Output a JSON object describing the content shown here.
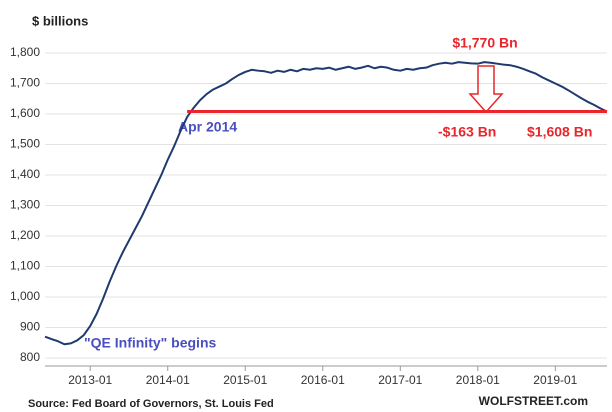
{
  "chart_data": {
    "type": "line",
    "title": "$ billions",
    "source": "Source: Fed Board of Governors, St. Louis Fed",
    "brand": "WOLFSTREET.com",
    "annotations": {
      "peak": "$1,770 Bn",
      "start": "Apr 2014",
      "drop": "-$163 Bn",
      "current": "$1,608 Bn",
      "qe": "\"QE Infinity\" begins"
    },
    "reference_line": {
      "value": 1608,
      "from": "2014-04",
      "color": "#e8262b"
    },
    "x": [
      "2012-06",
      "2012-07",
      "2012-08",
      "2012-09",
      "2012-10",
      "2012-11",
      "2012-12",
      "2013-01",
      "2013-02",
      "2013-03",
      "2013-04",
      "2013-05",
      "2013-06",
      "2013-07",
      "2013-08",
      "2013-09",
      "2013-10",
      "2013-11",
      "2013-12",
      "2014-01",
      "2014-02",
      "2014-03",
      "2014-04",
      "2014-05",
      "2014-06",
      "2014-07",
      "2014-08",
      "2014-09",
      "2014-10",
      "2014-11",
      "2014-12",
      "2015-01",
      "2015-02",
      "2015-03",
      "2015-04",
      "2015-05",
      "2015-06",
      "2015-07",
      "2015-08",
      "2015-09",
      "2015-10",
      "2015-11",
      "2015-12",
      "2016-01",
      "2016-02",
      "2016-03",
      "2016-04",
      "2016-05",
      "2016-06",
      "2016-07",
      "2016-08",
      "2016-09",
      "2016-10",
      "2016-11",
      "2016-12",
      "2017-01",
      "2017-02",
      "2017-03",
      "2017-04",
      "2017-05",
      "2017-06",
      "2017-07",
      "2017-08",
      "2017-09",
      "2017-10",
      "2017-11",
      "2017-12",
      "2018-01",
      "2018-02",
      "2018-03",
      "2018-04",
      "2018-05",
      "2018-06",
      "2018-07",
      "2018-08",
      "2018-09",
      "2018-10",
      "2018-11",
      "2018-12",
      "2019-01",
      "2019-02",
      "2019-03",
      "2019-04",
      "2019-05",
      "2019-06",
      "2019-07",
      "2019-08",
      "2019-09"
    ],
    "series": [
      {
        "color": "#1f3a6e",
        "values": [
          870,
          862,
          855,
          845,
          848,
          858,
          875,
          905,
          945,
          995,
          1050,
          1100,
          1145,
          1185,
          1225,
          1265,
          1310,
          1355,
          1400,
          1450,
          1495,
          1545,
          1590,
          1620,
          1645,
          1665,
          1680,
          1690,
          1700,
          1715,
          1728,
          1738,
          1745,
          1742,
          1740,
          1735,
          1742,
          1738,
          1745,
          1740,
          1748,
          1745,
          1750,
          1748,
          1752,
          1745,
          1750,
          1755,
          1748,
          1752,
          1758,
          1750,
          1755,
          1752,
          1745,
          1742,
          1748,
          1745,
          1750,
          1752,
          1760,
          1765,
          1768,
          1765,
          1770,
          1768,
          1766,
          1765,
          1770,
          1768,
          1765,
          1762,
          1760,
          1755,
          1748,
          1740,
          1732,
          1720,
          1710,
          1700,
          1690,
          1678,
          1665,
          1652,
          1640,
          1630,
          1618,
          1608
        ]
      }
    ],
    "xlim": [
      "2012-06",
      "2019-09"
    ],
    "xticks": [
      "2013-01",
      "2014-01",
      "2015-01",
      "2016-01",
      "2017-01",
      "2018-01",
      "2019-01"
    ],
    "ylim": [
      800,
      1800
    ],
    "yticks": [
      800,
      900,
      {
        "value": 1000,
        "label": "1,000"
      },
      {
        "value": 1100,
        "label": "1,100"
      },
      {
        "value": 1200,
        "label": "1,200"
      },
      {
        "value": 1300,
        "label": "1,300"
      },
      {
        "value": 1400,
        "label": "1,400"
      },
      {
        "value": 1500,
        "label": "1,500"
      },
      {
        "value": 1600,
        "label": "1,600"
      },
      {
        "value": 1700,
        "label": "1,700"
      },
      {
        "value": 1800,
        "label": "1,800"
      }
    ],
    "grid": true
  }
}
